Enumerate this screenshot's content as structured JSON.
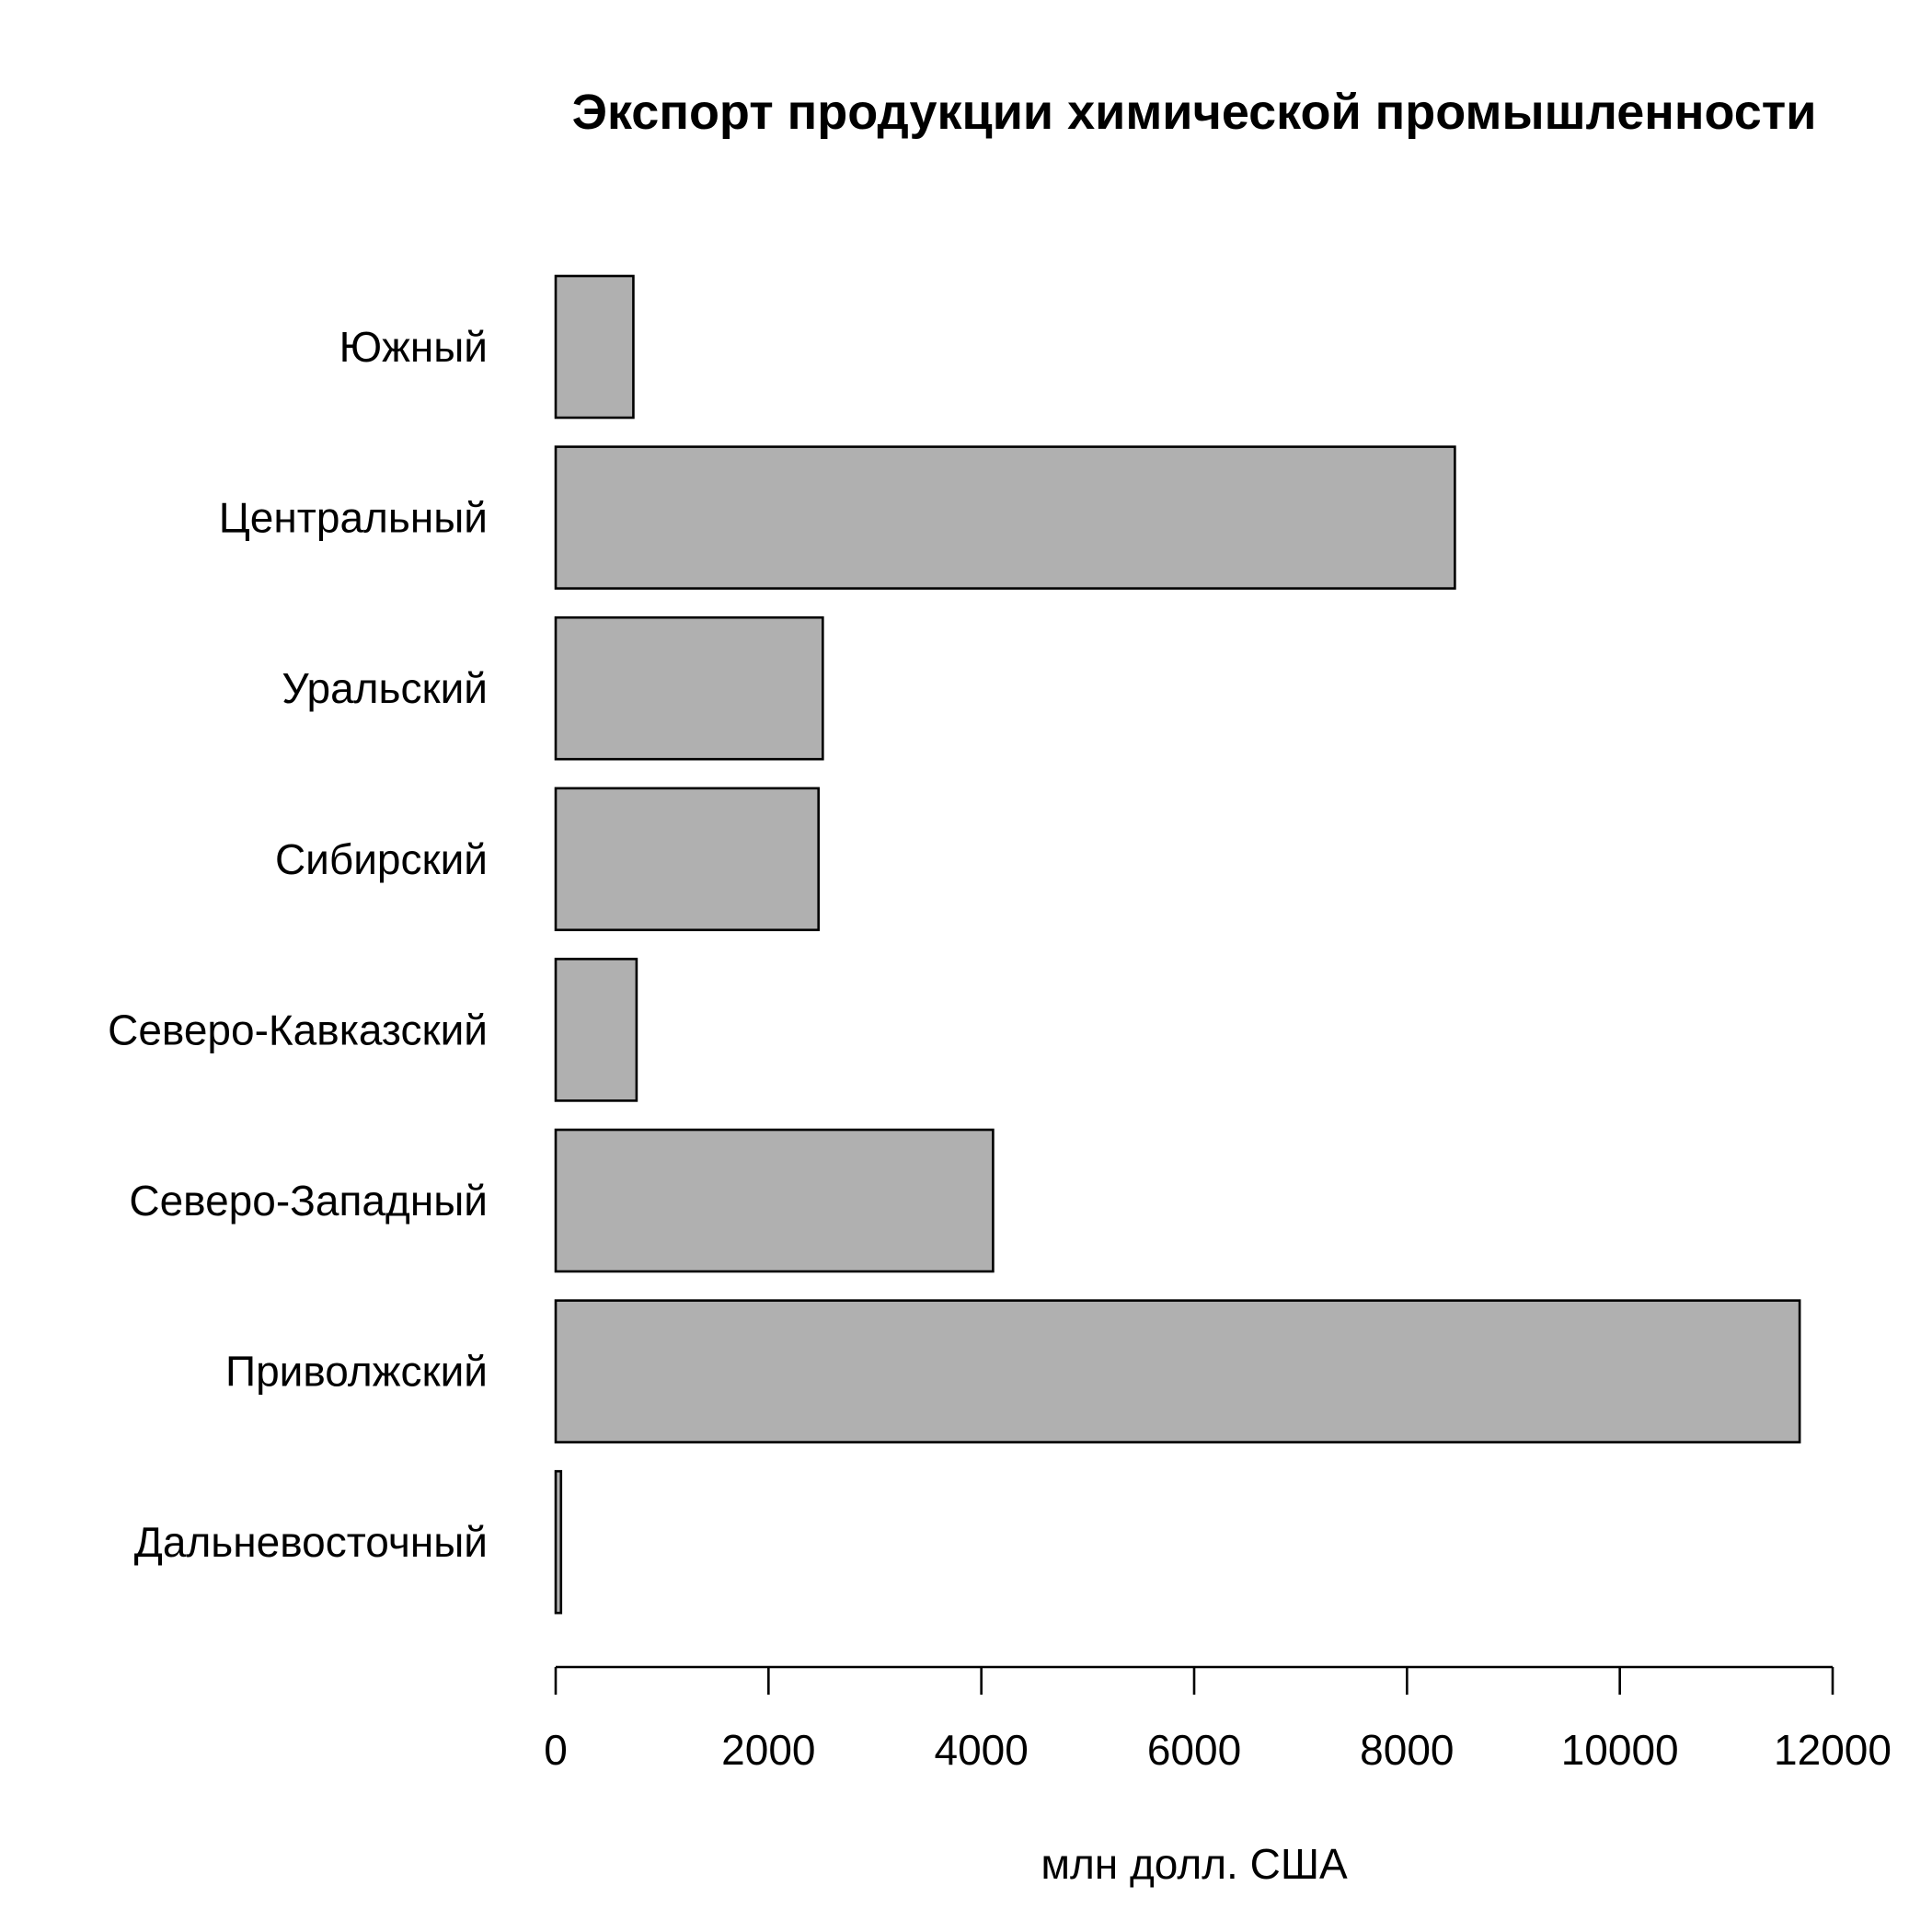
{
  "chart_data": {
    "type": "bar",
    "orientation": "horizontal",
    "title": "Экспорт продукции химической промышленности",
    "xlabel": "млн долл. США",
    "ylabel": "",
    "categories": [
      "Южный",
      "Центральный",
      "Уральский",
      "Сибирский",
      "Северо-Кавказский",
      "Северо-Западный",
      "Приволжский",
      "Дальневосточный"
    ],
    "values": [
      730,
      8450,
      2510,
      2470,
      760,
      4110,
      11690,
      50
    ],
    "xlim": [
      0,
      12000
    ],
    "xticks": [
      0,
      2000,
      4000,
      6000,
      8000,
      10000,
      12000
    ],
    "grid": false,
    "bar_color": "#b0b0b0",
    "edge_color": "#000000"
  }
}
